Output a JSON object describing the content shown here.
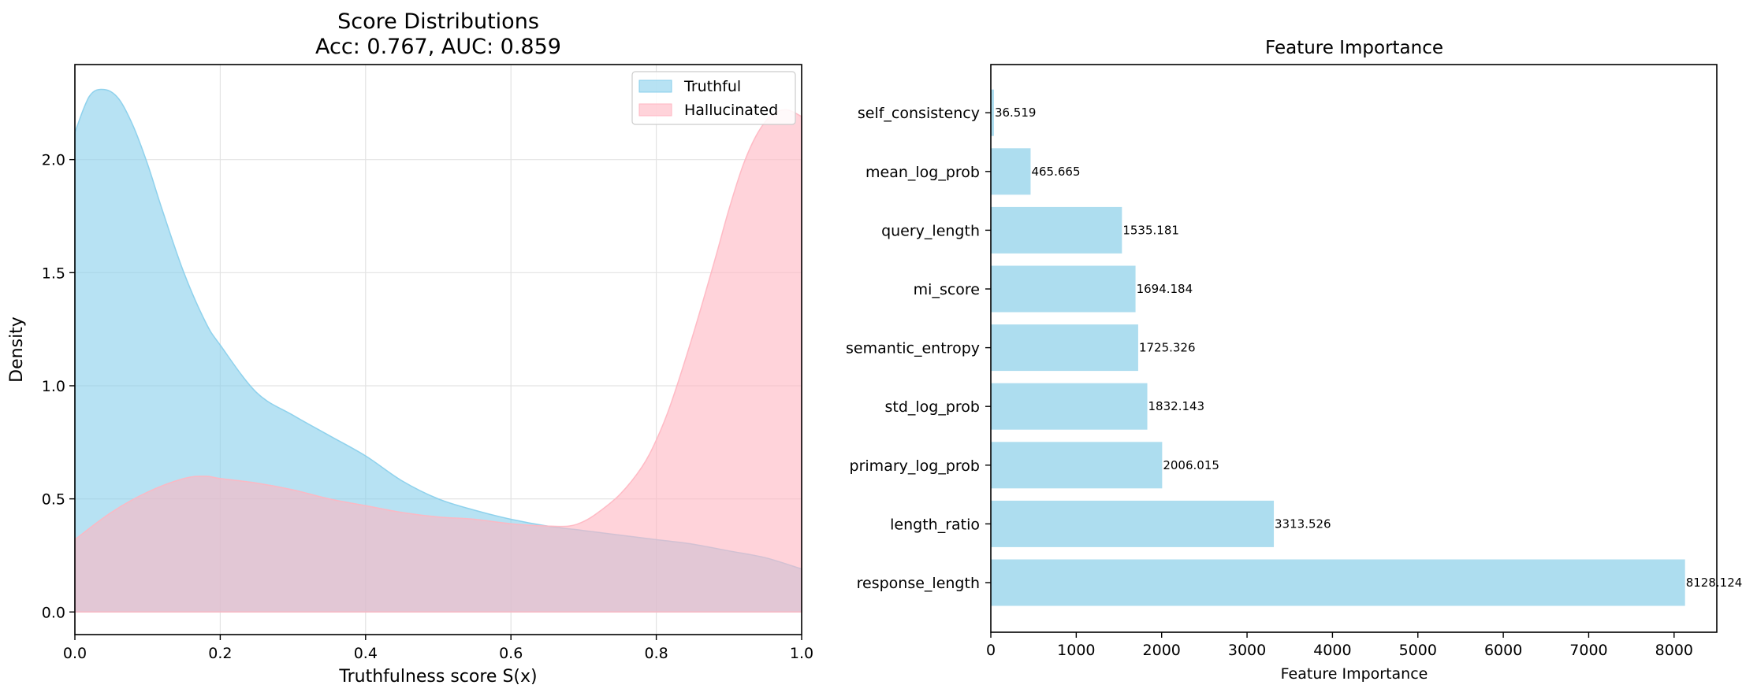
{
  "chart_data": [
    {
      "type": "area",
      "title": "Score Distributions",
      "subtitle": "Acc: 0.767, AUC: 0.859",
      "xlabel": "Truthfulness score S(x)",
      "ylabel": "Density",
      "xlim": [
        0.0,
        1.0
      ],
      "ylim": [
        -0.1,
        2.42
      ],
      "xticks": [
        "0.0",
        "0.2",
        "0.4",
        "0.6",
        "0.8",
        "1.0"
      ],
      "yticks": [
        "0.0",
        "0.5",
        "1.0",
        "1.5",
        "2.0"
      ],
      "grid": true,
      "legend_position": "top-right",
      "series": [
        {
          "name": "Truthful",
          "color": "#87CEEB",
          "x": [
            0.0,
            0.02,
            0.04,
            0.06,
            0.08,
            0.1,
            0.12,
            0.15,
            0.18,
            0.2,
            0.25,
            0.3,
            0.35,
            0.4,
            0.45,
            0.5,
            0.55,
            0.6,
            0.65,
            0.7,
            0.75,
            0.8,
            0.85,
            0.9,
            0.95,
            1.0
          ],
          "y": [
            2.12,
            2.28,
            2.31,
            2.27,
            2.15,
            1.98,
            1.78,
            1.5,
            1.28,
            1.18,
            0.97,
            0.87,
            0.78,
            0.69,
            0.58,
            0.5,
            0.45,
            0.41,
            0.38,
            0.36,
            0.34,
            0.32,
            0.3,
            0.27,
            0.24,
            0.19
          ]
        },
        {
          "name": "Hallucinated",
          "color": "#FFB6C1",
          "x": [
            0.0,
            0.05,
            0.1,
            0.15,
            0.18,
            0.2,
            0.25,
            0.3,
            0.35,
            0.4,
            0.45,
            0.5,
            0.55,
            0.6,
            0.65,
            0.68,
            0.7,
            0.72,
            0.75,
            0.78,
            0.8,
            0.82,
            0.85,
            0.88,
            0.9,
            0.92,
            0.94,
            0.96,
            0.98,
            1.0
          ],
          "y": [
            0.32,
            0.44,
            0.53,
            0.59,
            0.6,
            0.59,
            0.57,
            0.54,
            0.5,
            0.47,
            0.44,
            0.42,
            0.41,
            0.39,
            0.38,
            0.38,
            0.4,
            0.44,
            0.52,
            0.64,
            0.76,
            0.92,
            1.22,
            1.55,
            1.78,
            1.98,
            2.12,
            2.2,
            2.22,
            2.19
          ]
        }
      ]
    },
    {
      "type": "bar",
      "orientation": "horizontal",
      "title": "Feature Importance",
      "xlabel": "Feature Importance",
      "ylabel": "",
      "xlim": [
        0,
        8500
      ],
      "xticks": [
        "0",
        "1000",
        "2000",
        "3000",
        "4000",
        "5000",
        "6000",
        "7000",
        "8000"
      ],
      "grid": false,
      "color": "#ADDDEF",
      "categories": [
        "response_length",
        "length_ratio",
        "primary_log_prob",
        "std_log_prob",
        "semantic_entropy",
        "mi_score",
        "query_length",
        "mean_log_prob",
        "self_consistency"
      ],
      "values": [
        8128.124,
        3313.526,
        2006.015,
        1832.143,
        1725.326,
        1694.184,
        1535.181,
        465.665,
        36.519
      ],
      "value_labels": [
        "8128.124",
        "3313.526",
        "2006.015",
        "1832.143",
        "1725.326",
        "1694.184",
        "1535.181",
        "465.665",
        "36.519"
      ]
    }
  ]
}
